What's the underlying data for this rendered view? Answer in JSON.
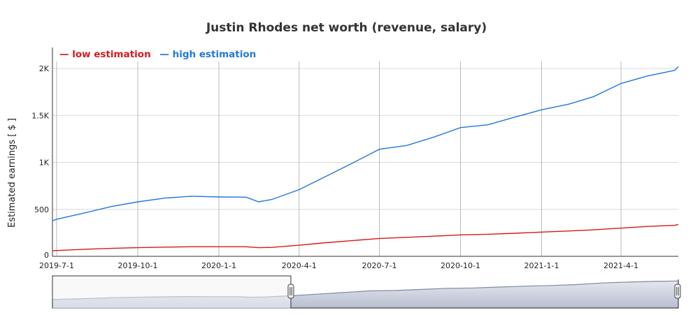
{
  "chart_data": {
    "type": "line",
    "title": "Justin Rhodes net worth (revenue, salary)",
    "xlabel": "",
    "ylabel": "Estimated earnings [ $ ]",
    "ylim": [
      0,
      2200
    ],
    "yticks": [
      {
        "value": 0,
        "label": "0"
      },
      {
        "value": 500,
        "label": "500"
      },
      {
        "value": 1000,
        "label": "1K"
      },
      {
        "value": 1500,
        "label": "1.5K"
      },
      {
        "value": 2000,
        "label": "2K"
      }
    ],
    "xticks": [
      "2019-7-1",
      "2019-10-1",
      "2020-1-1",
      "2020-4-1",
      "2020-7-1",
      "2020-10-1",
      "2021-1-1",
      "2021-4-1"
    ],
    "legend_position": "top-left",
    "grid": true,
    "x": [
      "2019-6-26",
      "2019-7-1",
      "2019-8-1",
      "2019-9-1",
      "2019-10-1",
      "2019-11-1",
      "2019-12-1",
      "2020-1-1",
      "2020-2-1",
      "2020-2-15",
      "2020-3-1",
      "2020-4-1",
      "2020-5-1",
      "2020-6-1",
      "2020-7-1",
      "2020-8-1",
      "2020-9-1",
      "2020-10-1",
      "2020-11-1",
      "2020-12-1",
      "2021-1-1",
      "2021-2-1",
      "2021-3-1",
      "2021-4-1",
      "2021-5-1",
      "2021-6-1",
      "2021-6-30"
    ],
    "series": [
      {
        "name": "low estimation",
        "color": "#d7191c",
        "values": [
          60,
          62,
          75,
          85,
          92,
          98,
          102,
          102,
          102,
          92,
          95,
          118,
          145,
          168,
          190,
          202,
          215,
          228,
          235,
          245,
          258,
          270,
          282,
          300,
          318,
          330,
          340
        ]
      },
      {
        "name": "high estimation",
        "color": "#2277dd",
        "values": [
          380,
          395,
          460,
          530,
          580,
          620,
          640,
          632,
          630,
          580,
          605,
          710,
          850,
          995,
          1140,
          1180,
          1270,
          1370,
          1400,
          1480,
          1560,
          1620,
          1700,
          1840,
          1920,
          1980,
          2020
        ]
      }
    ],
    "navigator": {
      "visible": true,
      "selected_range_start": "2020-4-1",
      "selected_range_end": "2021-6-30"
    }
  }
}
